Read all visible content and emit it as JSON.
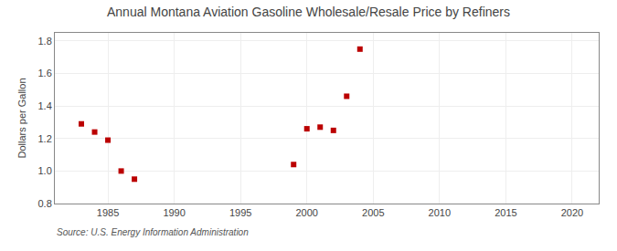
{
  "chart_data": {
    "type": "scatter",
    "title": "Annual Montana Aviation Gasoline Wholesale/Resale Price by Refiners",
    "ylabel": "Dollars per Gallon",
    "annotations": [
      "Source: U.S. Energy Information Administration"
    ],
    "x": [
      1983,
      1984,
      1985,
      1986,
      1987,
      1999,
      2000,
      2001,
      2002,
      2003,
      2004
    ],
    "values": [
      1.29,
      1.24,
      1.19,
      1.0,
      0.95,
      1.04,
      1.26,
      1.27,
      1.25,
      1.46,
      1.75
    ],
    "color": "#bb0000",
    "marker": "square",
    "xlim": [
      1981,
      2022
    ],
    "ylim": [
      0.8,
      1.85
    ],
    "xticks": [
      1985,
      1990,
      1995,
      2000,
      2005,
      2010,
      2015,
      2020
    ],
    "yticks": [
      0.8,
      {
        "value": 1.0,
        "label": "1.0"
      },
      1.2,
      1.4,
      1.6,
      1.8
    ],
    "grid": true
  }
}
